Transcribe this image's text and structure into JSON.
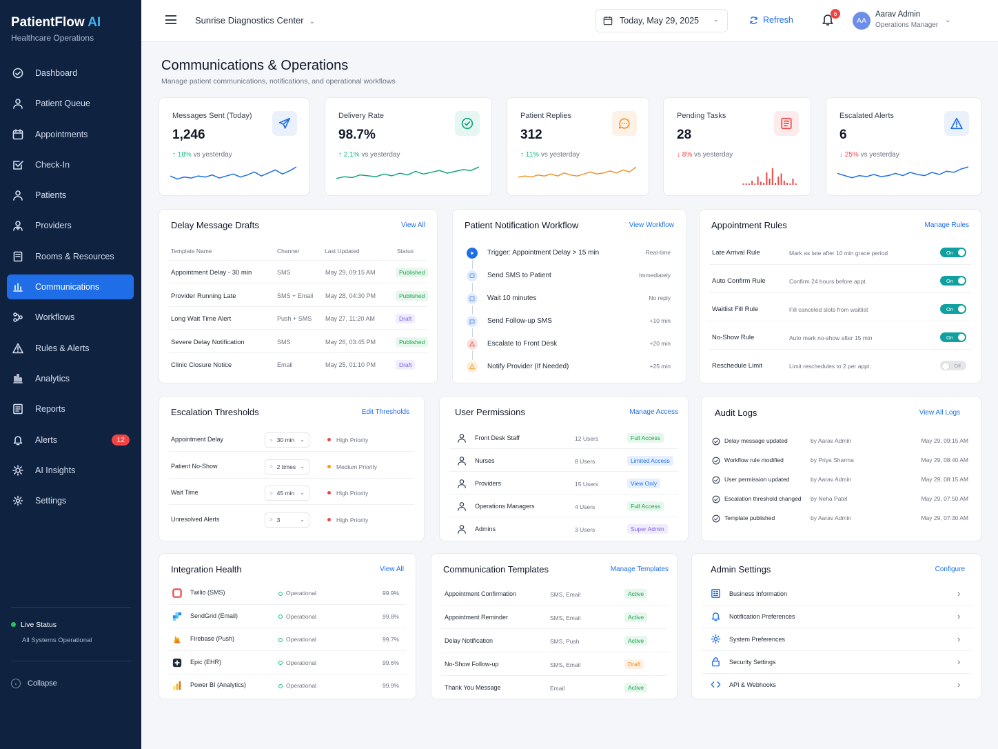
{
  "sidebar": {
    "brand": "PatientFlow",
    "brand_ai": "AI",
    "subtitle": "Healthcare Operations",
    "items": [
      {
        "label": "Dashboard",
        "icon": "dashboard-icon"
      },
      {
        "label": "Patient Queue",
        "icon": "user-icon"
      },
      {
        "label": "Appointments",
        "icon": "calendar-icon"
      },
      {
        "label": "Check-In",
        "icon": "checkbox-icon"
      },
      {
        "label": "Patients",
        "icon": "user-icon"
      },
      {
        "label": "Providers",
        "icon": "provider-icon"
      },
      {
        "label": "Rooms & Resources",
        "icon": "room-icon"
      },
      {
        "label": "Communications",
        "icon": "bars-icon",
        "active": true
      },
      {
        "label": "Workflows",
        "icon": "workflow-icon"
      },
      {
        "label": "Rules & Alerts",
        "icon": "warning-icon"
      },
      {
        "label": "Analytics",
        "icon": "analytics-icon"
      },
      {
        "label": "Reports",
        "icon": "report-icon"
      },
      {
        "label": "Alerts",
        "icon": "bell-icon",
        "badge": "12"
      },
      {
        "label": "AI Insights",
        "icon": "sun-icon"
      },
      {
        "label": "Settings",
        "icon": "gear-icon"
      }
    ],
    "live_status": "Live Status",
    "live_sub": "All Systems Operational",
    "collapse": "Collapse"
  },
  "topbar": {
    "clinic": "Sunrise Diagnostics Center",
    "date": "Today, May 29, 2025",
    "refresh": "Refresh",
    "notif_count": "6",
    "avatar": "AA",
    "user_name": "Aarav Admin",
    "user_role": "Operations Manager"
  },
  "page": {
    "title": "Communications & Operations",
    "subtitle": "Manage patient communications, notifications, and operational workflows"
  },
  "kpis": [
    {
      "label": "Messages Sent (Today)",
      "value": "1,246",
      "change": "18%",
      "dir": "up",
      "vs": "vs yesterday",
      "color": "#1f6ee8",
      "icon": "send-icon"
    },
    {
      "label": "Delivery Rate",
      "value": "98.7%",
      "change": "2.1%",
      "dir": "up",
      "vs": "vs yesterday",
      "color": "#10a37f",
      "icon": "check-circle-icon"
    },
    {
      "label": "Patient Replies",
      "value": "312",
      "change": "11%",
      "dir": "up",
      "vs": "vs yesterday",
      "color": "#f0932b",
      "icon": "chat-icon"
    },
    {
      "label": "Pending Tasks",
      "value": "28",
      "change": "8%",
      "dir": "down",
      "vs": "vs yesterday",
      "color": "#ef4444",
      "icon": "tasks-icon"
    },
    {
      "label": "Escalated Alerts",
      "value": "6",
      "change": "25%",
      "dir": "down",
      "vs": "vs yesterday",
      "color": "#1f6ee8",
      "icon": "alert-icon"
    }
  ],
  "drafts": {
    "title": "Delay Message Drafts",
    "link": "View All",
    "headers": [
      "Template Name",
      "Channel",
      "Last Updated",
      "Status"
    ],
    "rows": [
      {
        "name": "Appointment Delay - 30 min",
        "channel": "SMS",
        "updated": "May 29, 09:15 AM",
        "status": "Published"
      },
      {
        "name": "Provider Running Late",
        "channel": "SMS + Email",
        "updated": "May 28, 04:30 PM",
        "status": "Published"
      },
      {
        "name": "Long Wait Time Alert",
        "channel": "Push + SMS",
        "updated": "May 27, 11:20 AM",
        "status": "Draft"
      },
      {
        "name": "Severe Delay Notification",
        "channel": "SMS",
        "updated": "May 26, 03:45 PM",
        "status": "Published"
      },
      {
        "name": "Clinic Closure Notice",
        "channel": "Email",
        "updated": "May 25, 01:10 PM",
        "status": "Draft"
      }
    ]
  },
  "workflow": {
    "title": "Patient Notification Workflow",
    "link": "View Workflow",
    "steps": [
      {
        "label": "Trigger: Appointment Delay > 15 min",
        "time": "Real-time",
        "color": "#1f6ee8"
      },
      {
        "label": "Send SMS to Patient",
        "time": "Immediately",
        "color": "#6b9bf0"
      },
      {
        "label": "Wait 10 minutes",
        "time": "No reply",
        "color": "#6b9bf0"
      },
      {
        "label": "Send Follow-up SMS",
        "time": "+10 min",
        "color": "#6b9bf0"
      },
      {
        "label": "Escalate to Front Desk",
        "time": "+20 min",
        "color": "#ef6b6b"
      },
      {
        "label": "Notify Provider (If Needed)",
        "time": "+25 min",
        "color": "#f0a43a"
      }
    ]
  },
  "rules": {
    "title": "Appointment Rules",
    "link": "Manage Rules",
    "on": "On",
    "off": "Off",
    "rows": [
      {
        "name": "Late Arrival Rule",
        "desc": "Mark as late after 10 min grace period",
        "on": true
      },
      {
        "name": "Auto Confirm Rule",
        "desc": "Confirm 24 hours before appt.",
        "on": true
      },
      {
        "name": "Waitlist Fill Rule",
        "desc": "Fill canceled slots from waitlist",
        "on": true
      },
      {
        "name": "No-Show Rule",
        "desc": "Auto mark no-show after 15 min",
        "on": true
      },
      {
        "name": "Reschedule Limit",
        "desc": "Limit reschedules to 2 per appt.",
        "on": false
      }
    ]
  },
  "thresholds": {
    "title": "Escalation Thresholds",
    "link": "Edit Thresholds",
    "rows": [
      {
        "name": "Appointment Delay",
        "value": "30 min",
        "priority": "High Priority",
        "color": "#ef4444"
      },
      {
        "name": "Patient No-Show",
        "value": "2 times",
        "priority": "Medium Priority",
        "color": "#f59e0b"
      },
      {
        "name": "Wait Time",
        "value": "45 min",
        "priority": "High Priority",
        "color": "#ef4444"
      },
      {
        "name": "Unresolved Alerts",
        "value": "3",
        "priority": "High Priority",
        "color": "#ef4444"
      }
    ]
  },
  "permissions": {
    "title": "User Permissions",
    "link": "Manage Access",
    "rows": [
      {
        "role": "Front Desk Staff",
        "users": "12 Users",
        "access": "Full Access",
        "cls": "full"
      },
      {
        "role": "Nurses",
        "users": "8 Users",
        "access": "Limited Access",
        "cls": "lim"
      },
      {
        "role": "Providers",
        "users": "15 Users",
        "access": "View Only",
        "cls": "view"
      },
      {
        "role": "Operations Managers",
        "users": "4 Users",
        "access": "Full Access",
        "cls": "full"
      },
      {
        "role": "Admins",
        "users": "3 Users",
        "access": "Super Admin",
        "cls": "sup"
      }
    ]
  },
  "audit": {
    "title": "Audit Logs",
    "link": "View All Logs",
    "rows": [
      {
        "action": "Delay message updated",
        "by": "by Aarav Admin",
        "time": "May 29, 09:15 AM"
      },
      {
        "action": "Workflow rule modified",
        "by": "by Priya Sharma",
        "time": "May 29, 08:40 AM"
      },
      {
        "action": "User permission updated",
        "by": "by Aarav Admin",
        "time": "May 29, 08:15 AM"
      },
      {
        "action": "Escalation threshold changed",
        "by": "by Neha Patel",
        "time": "May 29, 07:50 AM"
      },
      {
        "action": "Template published",
        "by": "by Aarav Admin",
        "time": "May 29, 07:30 AM"
      }
    ]
  },
  "integrations": {
    "title": "Integration Health",
    "link": "View All",
    "rows": [
      {
        "name": "Twilio (SMS)",
        "status": "Operational",
        "uptime": "99.9%",
        "color": "#ef4444"
      },
      {
        "name": "SendGrid (Email)",
        "status": "Operational",
        "uptime": "99.8%",
        "color": "#1f8ae8"
      },
      {
        "name": "Firebase (Push)",
        "status": "Operational",
        "uptime": "99.7%",
        "color": "#f59e0b"
      },
      {
        "name": "Epic (EHR)",
        "status": "Operational",
        "uptime": "99.6%",
        "color": "#1f2937"
      },
      {
        "name": "Power BI (Analytics)",
        "status": "Operational",
        "uptime": "99.9%",
        "color": "#f2b01e"
      }
    ]
  },
  "templates": {
    "title": "Communication Templates",
    "link": "Manage Templates",
    "rows": [
      {
        "name": "Appointment Confirmation",
        "channel": "SMS, Email",
        "status": "Active",
        "cls": "act"
      },
      {
        "name": "Appointment Reminder",
        "channel": "SMS, Email",
        "status": "Active",
        "cls": "act"
      },
      {
        "name": "Delay Notification",
        "channel": "SMS, Push",
        "status": "Active",
        "cls": "act"
      },
      {
        "name": "No-Show Follow-up",
        "channel": "SMS, Email",
        "status": "Draft",
        "cls": "drf"
      },
      {
        "name": "Thank You Message",
        "channel": "Email",
        "status": "Active",
        "cls": "act"
      }
    ]
  },
  "admin": {
    "title": "Admin Settings",
    "link": "Configure",
    "rows": [
      {
        "label": "Business Information",
        "icon": "building-icon"
      },
      {
        "label": "Notification Preferences",
        "icon": "bell-icon"
      },
      {
        "label": "System Preferences",
        "icon": "gear-icon"
      },
      {
        "label": "Security Settings",
        "icon": "lock-icon"
      },
      {
        "label": "API & Webhooks",
        "icon": "code-icon"
      }
    ]
  }
}
